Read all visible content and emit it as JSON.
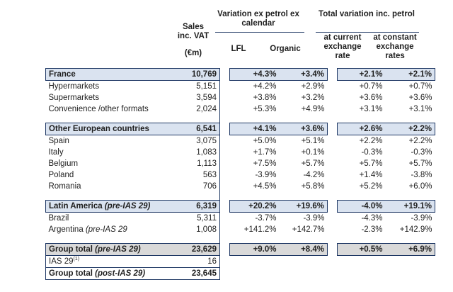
{
  "header": {
    "sales": [
      "Sales",
      "inc. VAT",
      "(€m)"
    ],
    "ex_petrol": "Variation ex petrol ex calendar",
    "total_variation": "Total variation inc. petrol",
    "lfl": "LFL",
    "organic": "Organic",
    "current": [
      "at current",
      "exchange",
      "rate"
    ],
    "constant": [
      "at constant",
      "exchange",
      "rates"
    ]
  },
  "groups": [
    {
      "label": "France",
      "sales": "10,769",
      "lfl": "+4.3%",
      "organic": "+3.4%",
      "current": "+2.1%",
      "constant": "+2.1%",
      "rows": [
        {
          "label": "Hypermarkets",
          "sales": "5,151",
          "lfl": "+4.2%",
          "organic": "+2.9%",
          "current": "+0.7%",
          "constant": "+0.7%"
        },
        {
          "label": "Supermarkets",
          "sales": "3,594",
          "lfl": "+3.8%",
          "organic": "+3.2%",
          "current": "+3.6%",
          "constant": "+3.6%"
        },
        {
          "label": "Convenience /other formats",
          "sales": "2,024",
          "lfl": "+5.3%",
          "organic": "+4.9%",
          "current": "+3.1%",
          "constant": "+3.1%"
        }
      ]
    },
    {
      "label": "Other European countries",
      "sales": "6,541",
      "lfl": "+4.1%",
      "organic": "+3.6%",
      "current": "+2.6%",
      "constant": "+2.2%",
      "rows": [
        {
          "label": "Spain",
          "sales": "3,075",
          "lfl": "+5.0%",
          "organic": "+5.1%",
          "current": "+2.2%",
          "constant": "+2.2%"
        },
        {
          "label": "Italy",
          "sales": "1,083",
          "lfl": "+1.7%",
          "organic": "+0.1%",
          "current": "-0.3%",
          "constant": "-0.3%"
        },
        {
          "label": "Belgium",
          "sales": "1,113",
          "lfl": "+7.5%",
          "organic": "+5.7%",
          "current": "+5.7%",
          "constant": "+5.7%"
        },
        {
          "label": "Poland",
          "sales": "563",
          "lfl": "-3.9%",
          "organic": "-4.2%",
          "current": "+1.4%",
          "constant": "-3.8%"
        },
        {
          "label": "Romania",
          "sales": "706",
          "lfl": "+4.5%",
          "organic": "+5.8%",
          "current": "+5.2%",
          "constant": "+6.0%"
        }
      ]
    },
    {
      "label": "Latin America",
      "label_note": "(pre-IAS 29)",
      "sales": "6,319",
      "lfl": "+20.2%",
      "organic": "+19.6%",
      "current": "-4.0%",
      "constant": "+19.1%",
      "rows": [
        {
          "label": "Brazil",
          "sales": "5,311",
          "lfl": "-3.7%",
          "organic": "-3.9%",
          "current": "-4.3%",
          "constant": "-3.9%"
        },
        {
          "label": "Argentina",
          "label_note": "(pre-IAS 29",
          "sales": "1,008",
          "lfl": "+141.2%",
          "organic": "+142.7%",
          "current": "-2.3%",
          "constant": "+142.9%"
        }
      ]
    }
  ],
  "total": {
    "label": "Group total",
    "label_note": "(pre-IAS 29)",
    "sales": "23,629",
    "lfl": "+9.0%",
    "organic": "+8.4%",
    "current": "+0.5%",
    "constant": "+6.9%"
  },
  "ias": {
    "label": "IAS 29",
    "footnote": "(1)",
    "sales": "16"
  },
  "post_total": {
    "label": "Group total",
    "label_note": "(post-IAS 29)",
    "sales": "23,645"
  }
}
